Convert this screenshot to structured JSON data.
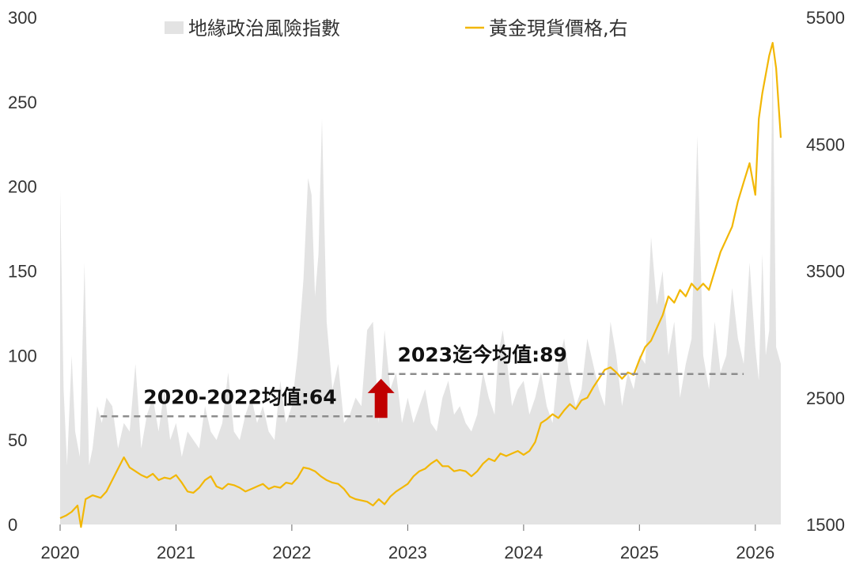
{
  "chart_data": {
    "type": "area+line",
    "title": "",
    "legend": {
      "placement": "top",
      "entries": [
        {
          "label": "地緣政治風險指數",
          "color": "#e3e3e3",
          "kind": "area"
        },
        {
          "label": "黃金現貨價格,右",
          "color": "#f2b705",
          "kind": "line"
        }
      ]
    },
    "x_axis": {
      "labels": [
        "2020",
        "2021",
        "2022",
        "2023",
        "2024",
        "2025",
        "2026"
      ],
      "range": [
        2020.0,
        2026.22
      ]
    },
    "y_left": {
      "range": [
        0,
        300
      ],
      "ticks": [
        0,
        50,
        100,
        150,
        200,
        250,
        300
      ]
    },
    "y_right": {
      "range": [
        1500,
        5500
      ],
      "ticks": [
        1500,
        2500,
        3500,
        4500,
        5500
      ]
    },
    "grid": false,
    "series": [
      {
        "name": "地緣政治風險指數",
        "axis": "left",
        "x": [
          2020.0,
          2020.03,
          2020.06,
          2020.1,
          2020.13,
          2020.17,
          2020.21,
          2020.25,
          2020.28,
          2020.32,
          2020.36,
          2020.4,
          2020.45,
          2020.5,
          2020.55,
          2020.6,
          2020.65,
          2020.7,
          2020.75,
          2020.8,
          2020.85,
          2020.9,
          2020.95,
          2021.0,
          2021.05,
          2021.1,
          2021.15,
          2021.2,
          2021.25,
          2021.3,
          2021.35,
          2021.4,
          2021.45,
          2021.5,
          2021.55,
          2021.6,
          2021.65,
          2021.7,
          2021.75,
          2021.8,
          2021.85,
          2021.9,
          2021.95,
          2022.0,
          2022.05,
          2022.1,
          2022.14,
          2022.17,
          2022.2,
          2022.23,
          2022.26,
          2022.3,
          2022.35,
          2022.4,
          2022.45,
          2022.5,
          2022.55,
          2022.6,
          2022.65,
          2022.7,
          2022.75,
          2022.8,
          2022.85,
          2022.9,
          2022.95,
          2023.0,
          2023.05,
          2023.1,
          2023.15,
          2023.2,
          2023.25,
          2023.3,
          2023.35,
          2023.4,
          2023.45,
          2023.5,
          2023.55,
          2023.6,
          2023.65,
          2023.7,
          2023.75,
          2023.78,
          2023.82,
          2023.86,
          2023.9,
          2023.95,
          2024.0,
          2024.05,
          2024.1,
          2024.15,
          2024.2,
          2024.25,
          2024.3,
          2024.35,
          2024.4,
          2024.45,
          2024.5,
          2024.55,
          2024.6,
          2024.65,
          2024.7,
          2024.75,
          2024.8,
          2024.85,
          2024.9,
          2024.95,
          2025.0,
          2025.05,
          2025.1,
          2025.15,
          2025.2,
          2025.25,
          2025.3,
          2025.35,
          2025.4,
          2025.45,
          2025.5,
          2025.55,
          2025.6,
          2025.65,
          2025.7,
          2025.75,
          2025.8,
          2025.85,
          2025.9,
          2025.95,
          2026.0,
          2026.03,
          2026.06,
          2026.09,
          2026.12,
          2026.15,
          2026.18,
          2026.22
        ],
        "values": [
          198,
          80,
          35,
          100,
          55,
          40,
          155,
          35,
          45,
          70,
          60,
          75,
          70,
          45,
          60,
          55,
          95,
          45,
          65,
          75,
          55,
          80,
          50,
          60,
          40,
          55,
          50,
          45,
          70,
          55,
          50,
          60,
          90,
          55,
          50,
          65,
          75,
          60,
          70,
          55,
          50,
          85,
          60,
          70,
          100,
          145,
          205,
          195,
          135,
          160,
          240,
          120,
          80,
          95,
          60,
          65,
          75,
          70,
          115,
          120,
          60,
          115,
          80,
          90,
          60,
          75,
          60,
          70,
          80,
          60,
          55,
          75,
          85,
          65,
          70,
          60,
          55,
          65,
          90,
          75,
          65,
          100,
          115,
          95,
          70,
          80,
          85,
          65,
          75,
          90,
          70,
          60,
          95,
          110,
          85,
          70,
          80,
          110,
          95,
          80,
          70,
          120,
          100,
          70,
          90,
          80,
          100,
          95,
          170,
          130,
          150,
          100,
          120,
          75,
          95,
          110,
          230,
          100,
          80,
          120,
          90,
          100,
          140,
          110,
          95,
          155,
          105,
          85,
          160,
          100,
          115,
          280,
          105,
          95
        ],
        "color": "#e3e3e3"
      },
      {
        "name": "黃金現貨價格,右",
        "axis": "right",
        "x": [
          2020.0,
          2020.05,
          2020.1,
          2020.15,
          2020.18,
          2020.22,
          2020.28,
          2020.35,
          2020.4,
          2020.45,
          2020.5,
          2020.55,
          2020.6,
          2020.65,
          2020.7,
          2020.75,
          2020.8,
          2020.85,
          2020.9,
          2020.95,
          2021.0,
          2021.05,
          2021.1,
          2021.15,
          2021.2,
          2021.25,
          2021.3,
          2021.35,
          2021.4,
          2021.45,
          2021.5,
          2021.55,
          2021.6,
          2021.65,
          2021.7,
          2021.75,
          2021.8,
          2021.85,
          2021.9,
          2021.95,
          2022.0,
          2022.05,
          2022.1,
          2022.15,
          2022.2,
          2022.25,
          2022.3,
          2022.35,
          2022.4,
          2022.45,
          2022.5,
          2022.55,
          2022.6,
          2022.65,
          2022.7,
          2022.75,
          2022.8,
          2022.85,
          2022.9,
          2022.95,
          2023.0,
          2023.05,
          2023.1,
          2023.15,
          2023.2,
          2023.25,
          2023.3,
          2023.35,
          2023.4,
          2023.45,
          2023.5,
          2023.55,
          2023.6,
          2023.65,
          2023.7,
          2023.75,
          2023.8,
          2023.85,
          2023.9,
          2023.95,
          2024.0,
          2024.05,
          2024.1,
          2024.15,
          2024.2,
          2024.25,
          2024.3,
          2024.35,
          2024.4,
          2024.45,
          2024.5,
          2024.55,
          2024.6,
          2024.65,
          2024.7,
          2024.75,
          2024.8,
          2024.85,
          2024.9,
          2024.95,
          2025.0,
          2025.05,
          2025.1,
          2025.15,
          2025.2,
          2025.25,
          2025.3,
          2025.35,
          2025.4,
          2025.45,
          2025.5,
          2025.55,
          2025.6,
          2025.65,
          2025.7,
          2025.75,
          2025.8,
          2025.85,
          2025.9,
          2025.95,
          2026.0,
          2026.03,
          2026.06,
          2026.09,
          2026.12,
          2026.15,
          2026.18,
          2026.22
        ],
        "values": [
          1550,
          1570,
          1600,
          1650,
          1480,
          1700,
          1730,
          1710,
          1760,
          1850,
          1940,
          2030,
          1950,
          1920,
          1890,
          1870,
          1900,
          1850,
          1870,
          1860,
          1890,
          1830,
          1760,
          1750,
          1790,
          1850,
          1880,
          1800,
          1780,
          1820,
          1810,
          1790,
          1760,
          1780,
          1800,
          1820,
          1780,
          1800,
          1790,
          1830,
          1820,
          1870,
          1950,
          1940,
          1920,
          1880,
          1850,
          1830,
          1820,
          1780,
          1720,
          1700,
          1690,
          1680,
          1650,
          1700,
          1660,
          1720,
          1760,
          1790,
          1820,
          1880,
          1920,
          1940,
          1980,
          2010,
          1960,
          1960,
          1920,
          1930,
          1920,
          1880,
          1920,
          1980,
          2020,
          2000,
          2060,
          2040,
          2060,
          2080,
          2050,
          2080,
          2150,
          2300,
          2330,
          2370,
          2340,
          2400,
          2450,
          2410,
          2480,
          2500,
          2580,
          2650,
          2720,
          2740,
          2700,
          2650,
          2700,
          2680,
          2800,
          2900,
          2950,
          3050,
          3150,
          3300,
          3250,
          3350,
          3300,
          3400,
          3350,
          3400,
          3350,
          3500,
          3650,
          3750,
          3850,
          4050,
          4200,
          4350,
          4100,
          4700,
          4900,
          5050,
          5200,
          5300,
          5100,
          4550
        ],
        "color": "#f2b705"
      }
    ],
    "annotations": [
      {
        "text": "2020-2022均值:64",
        "value": 64,
        "axis": "left",
        "x_range": [
          2020.35,
          2022.72
        ]
      },
      {
        "text": "2023迄今均值:89",
        "value": 89,
        "axis": "left",
        "x_range": [
          2022.83,
          2025.9
        ]
      }
    ],
    "arrow": {
      "color": "#c00000",
      "direction": "up"
    }
  }
}
